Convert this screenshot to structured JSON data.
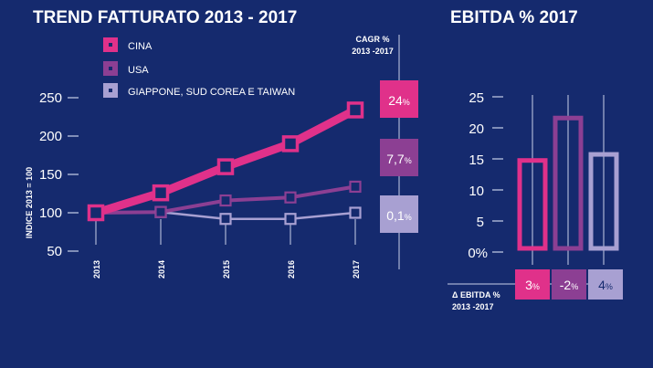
{
  "colors": {
    "background": "#152a6e",
    "axis": "#c9d0e8",
    "cina": "#e0318a",
    "usa": "#8c3f93",
    "giappone": "#a8a0d2"
  },
  "chart_data": [
    {
      "type": "line",
      "title": "TREND FATTURATO 2013 - 2017",
      "ylabel": "INDICE 2013 = 100",
      "x": [
        "2013",
        "2014",
        "2015",
        "2016",
        "2017"
      ],
      "yticks": [
        "50",
        "100",
        "150",
        "200",
        "250"
      ],
      "ylim": [
        50,
        250
      ],
      "legend_placement": "top-left",
      "series": [
        {
          "name": "CINA",
          "color_key": "cina",
          "values": [
            100,
            126,
            160,
            190,
            234
          ]
        },
        {
          "name": "USA",
          "color_key": "usa",
          "values": [
            100,
            101,
            116,
            120,
            134
          ]
        },
        {
          "name": "GIAPPONE, SUD COREA E TAIWAN",
          "color_key": "giappone",
          "values": [
            100,
            101,
            92,
            92,
            100
          ]
        }
      ],
      "cagr_header": [
        "CAGR %",
        "2013 -2017"
      ],
      "cagr": [
        {
          "value": "24",
          "unit": "%",
          "color_key": "cina"
        },
        {
          "value": "7,7",
          "unit": "%",
          "color_key": "usa"
        },
        {
          "value": "0,1",
          "unit": "%",
          "color_key": "giappone"
        }
      ]
    },
    {
      "type": "bar",
      "title": "EBITDA % 2017",
      "categories": [
        "CINA",
        "USA",
        "GIAPPONE, SUD COREA E TAIWAN"
      ],
      "values": [
        14.5,
        21.5,
        15.5
      ],
      "colors": [
        "cina",
        "usa",
        "giappone"
      ],
      "yticks": [
        "0%",
        "5",
        "10",
        "15",
        "20",
        "25"
      ],
      "ylim": [
        0,
        25
      ],
      "delta_label": [
        "Δ EBITDA %",
        "2013 -2017"
      ],
      "delta": [
        {
          "value": "3",
          "unit": "%",
          "color_key": "cina"
        },
        {
          "value": "-2",
          "unit": "%",
          "color_key": "usa"
        },
        {
          "value": "4",
          "unit": "%",
          "color_key": "giappone"
        }
      ]
    }
  ]
}
